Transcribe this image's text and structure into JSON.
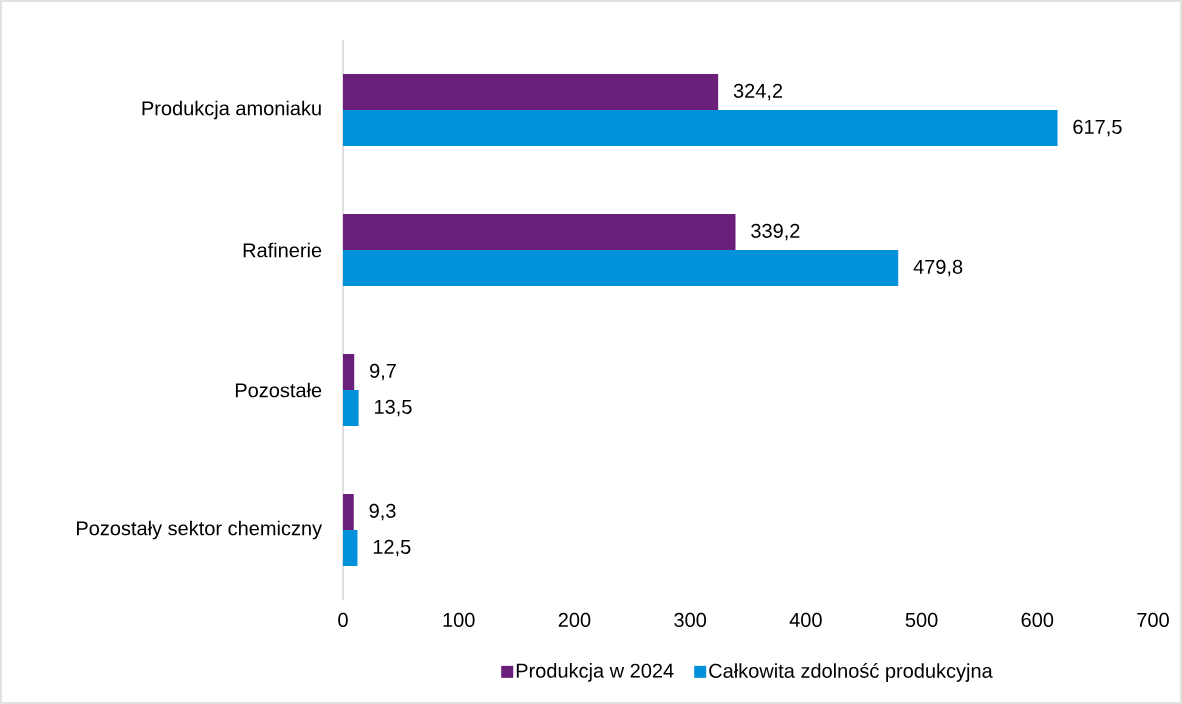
{
  "chart_data": {
    "type": "bar",
    "orientation": "horizontal",
    "categories": [
      "Produkcja amoniaku",
      "Rafinerie",
      "Pozostałe",
      "Pozostały sektor chemiczny"
    ],
    "series": [
      {
        "name": "Produkcja w 2024",
        "color": "#6a1f7a",
        "values": [
          324.2,
          339.2,
          9.7,
          9.3
        ],
        "value_labels": [
          "324,2",
          "339,2",
          "9,7",
          "9,3"
        ]
      },
      {
        "name": "Całkowita zdolność produkcyjna",
        "color": "#0091da",
        "values": [
          617.5,
          479.8,
          13.5,
          12.5
        ],
        "value_labels": [
          "617,5",
          "479,8",
          "13,5",
          "12,5"
        ]
      }
    ],
    "xlim": [
      0,
      700
    ],
    "xticks": [
      0,
      100,
      200,
      300,
      400,
      500,
      600,
      700
    ],
    "grid": false,
    "legend": "bottom"
  }
}
